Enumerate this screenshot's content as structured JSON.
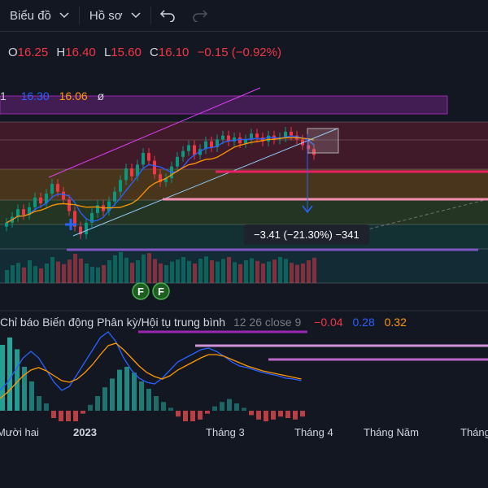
{
  "toolbar": {
    "chart_label": "Biểu đồ",
    "profile_label": "Hồ sơ"
  },
  "icons": {
    "chevron": "chevron-down-icon",
    "undo": "undo-icon",
    "redo": "redo-icon"
  },
  "ohlc": {
    "o_label": "O",
    "o_value": "16.25",
    "h_label": "H",
    "h_value": "16.40",
    "l_label": "L",
    "l_value": "15.60",
    "c_label": "C",
    "c_value": "16.10",
    "change": "−0.15 (−0.92%)"
  },
  "indicator_row": {
    "prefix": "1",
    "v1": "16.30",
    "v2": "16.06",
    "v3": "ø"
  },
  "measure": {
    "label": "−3.41 (−21.30%) −341"
  },
  "macd_legend": {
    "name": "Chỉ báo Biến động Phân kỳ/Hội tụ trung bình",
    "params": "12 26 close 9",
    "v_hist": "−0.04",
    "v_macd": "0.28",
    "v_signal": "0.32"
  },
  "x_axis": {
    "labels": [
      "Mười hai",
      "2023",
      "Tháng 3",
      "Tháng 4",
      "Tháng Năm",
      "Tháng"
    ]
  },
  "markers": {
    "f1": "F",
    "f2": "F"
  },
  "colors": {
    "bg": "#131722",
    "up": "#089981",
    "down": "#f23645",
    "ma_fast": "#2962ff",
    "ma_slow": "#ff9800",
    "macd": "#2962ff",
    "signal": "#ff9800",
    "purple": "#9c27b0",
    "pink": "#e040fb",
    "lavender": "#7e57c2"
  },
  "chart_data": {
    "type": "candlestick",
    "series_close": [
      12.6,
      12.9,
      13.3,
      13.0,
      13.4,
      13.9,
      13.6,
      14.1,
      14.6,
      14.2,
      13.8,
      13.2,
      12.4,
      12.0,
      12.6,
      13.1,
      13.5,
      13.2,
      13.7,
      14.2,
      14.8,
      15.4,
      15.0,
      15.6,
      16.2,
      15.8,
      15.1,
      14.7,
      14.9,
      15.5,
      16.0,
      16.3,
      16.6,
      16.1,
      16.4,
      16.8,
      16.5,
      16.9,
      17.1,
      16.8,
      17.0,
      16.7,
      16.9,
      17.2,
      17.0,
      16.8,
      17.1,
      16.9,
      17.0,
      17.3,
      17.1,
      16.9,
      16.6,
      16.4,
      16.1
    ],
    "volume": [
      40,
      55,
      62,
      48,
      70,
      52,
      45,
      60,
      80,
      66,
      58,
      72,
      90,
      75,
      60,
      50,
      48,
      55,
      70,
      85,
      95,
      78,
      62,
      70,
      88,
      92,
      74,
      60,
      55,
      66,
      72,
      80,
      68,
      60,
      75,
      82,
      70,
      66,
      74,
      80,
      64,
      58,
      70,
      76,
      68,
      60,
      66,
      72,
      80,
      74,
      62,
      56,
      60,
      70,
      78
    ],
    "macd_hist": [
      0.45,
      0.5,
      0.42,
      0.3,
      0.2,
      0.1,
      0.05,
      -0.05,
      -0.1,
      -0.12,
      -0.08,
      -0.02,
      0.04,
      0.1,
      0.16,
      0.22,
      0.28,
      0.3,
      0.26,
      0.2,
      0.15,
      0.1,
      0.06,
      0.02,
      -0.04,
      -0.08,
      -0.1,
      -0.06,
      -0.02,
      0.03,
      0.06,
      0.08,
      0.05,
      0.02,
      -0.03,
      -0.06,
      -0.08,
      -0.06,
      -0.04,
      -0.05,
      -0.06,
      -0.04
    ],
    "x_labels": [
      "Mười hai",
      "2023",
      "Tháng 3",
      "Tháng 4",
      "Tháng Năm",
      "Tháng"
    ]
  }
}
